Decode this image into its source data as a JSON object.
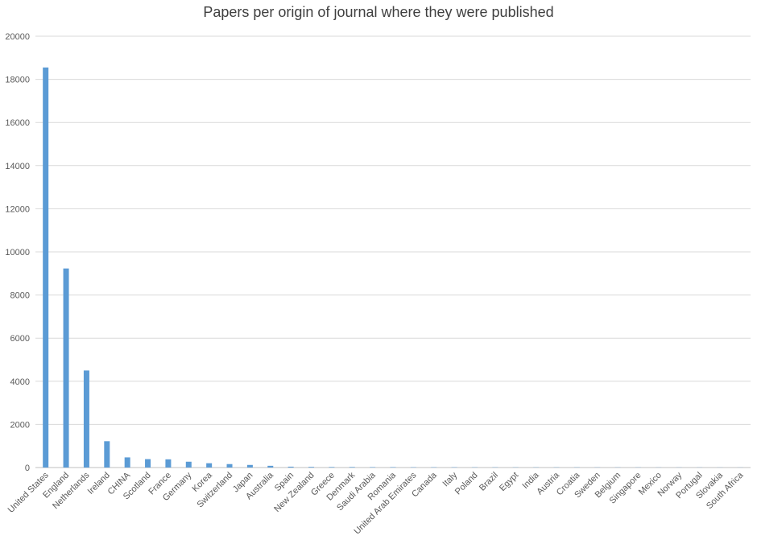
{
  "chart_data": {
    "type": "bar",
    "title": "Papers per origin of journal where they were published",
    "xlabel": "",
    "ylabel": "",
    "ylim": [
      0,
      20000
    ],
    "yticks": [
      0,
      2000,
      4000,
      6000,
      8000,
      10000,
      12000,
      14000,
      16000,
      18000,
      20000
    ],
    "grid": true,
    "legend": "none",
    "bar_color": "#5b9bd5",
    "categories": [
      "United States",
      "England",
      "Netherlands",
      "Ireland",
      "CHINA",
      "Scotland",
      "France",
      "Germany",
      "Korea",
      "Switzerland",
      "Japan",
      "Australia",
      "Spain",
      "New Zealand",
      "Greece",
      "Denmark",
      "Saudi Arabia",
      "Romania",
      "United Arab Emirates",
      "Canada",
      "Italy",
      "Poland",
      "Brazil",
      "Egypt",
      "India",
      "Austria",
      "Croatia",
      "Sweden",
      "Belgium",
      "Singapore",
      "Mexico",
      "Norway",
      "Portugal",
      "Slovakia",
      "South Africa"
    ],
    "values": [
      18550,
      9230,
      4500,
      1220,
      470,
      390,
      380,
      270,
      200,
      160,
      120,
      80,
      40,
      30,
      25,
      25,
      20,
      20,
      15,
      15,
      15,
      12,
      12,
      10,
      10,
      10,
      10,
      8,
      8,
      8,
      6,
      6,
      6,
      5,
      5
    ]
  }
}
